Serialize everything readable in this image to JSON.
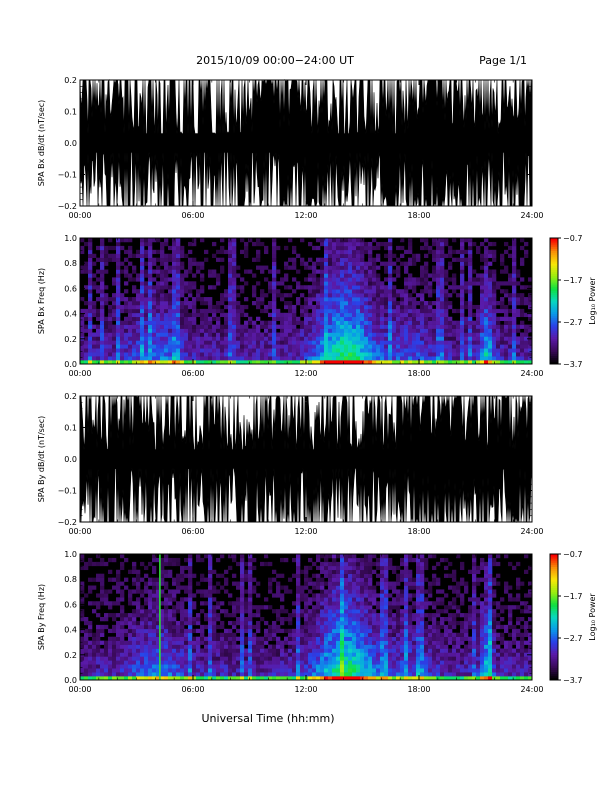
{
  "header": {
    "date_range": "2015/10/09  00:00−24:00 UT",
    "page": "Page 1/1"
  },
  "x_axis": {
    "title": "Universal Time (hh:mm)",
    "tick_labels": [
      "00:00",
      "06:00",
      "12:00",
      "18:00",
      "24:00"
    ]
  },
  "colors": {
    "waveform": "#000000",
    "spectrogram_background": "#000000",
    "colormap": [
      "#000000",
      "#3a0a5a",
      "#5a1aa8",
      "#2a40e8",
      "#0a9ae8",
      "#08d8c0",
      "#10e040",
      "#9aee10",
      "#f8e808",
      "#f89008",
      "#f80000"
    ]
  },
  "chart_data": [
    {
      "type": "line",
      "ylabel": "SPA Bx dB/dt (nT/sec)",
      "ylim": [
        -0.2,
        0.2
      ],
      "y_tick_labels": [
        "0.2",
        "0.1",
        "0.0",
        "−0.1",
        "−0.2"
      ],
      "x_range_hours": [
        0,
        24
      ],
      "note_values": "dense black waveform saturating the ±0.2 range"
    },
    {
      "type": "heatmap",
      "ylabel": "SPA Bx Freq (Hz)",
      "ylim": [
        0.0,
        1.0
      ],
      "y_tick_labels": [
        "1.0",
        "0.8",
        "0.6",
        "0.4",
        "0.2",
        "0.0"
      ],
      "x_range_hours": [
        0,
        24
      ],
      "colorbar": {
        "label": "Log₁₀ Power",
        "range": [
          -3.7,
          -0.7
        ],
        "tick_labels": [
          "−0.7",
          "−1.7",
          "−2.7",
          "−3.7"
        ]
      }
    },
    {
      "type": "line",
      "ylabel": "SPA By dB/dt (nT/sec)",
      "ylim": [
        -0.2,
        0.2
      ],
      "y_tick_labels": [
        "0.2",
        "0.1",
        "0.0",
        "−0.1",
        "−0.2"
      ],
      "x_range_hours": [
        0,
        24
      ]
    },
    {
      "type": "heatmap",
      "ylabel": "SPA By Freq (Hz)",
      "ylim": [
        0.0,
        1.0
      ],
      "y_tick_labels": [
        "1.0",
        "0.8",
        "0.6",
        "0.4",
        "0.2",
        "0.0"
      ],
      "x_range_hours": [
        0,
        24
      ],
      "colorbar": {
        "label": "Log₁₀ Power",
        "range": [
          -3.7,
          -0.7
        ],
        "tick_labels": [
          "−0.7",
          "−1.7",
          "−2.7",
          "−3.7"
        ]
      }
    }
  ]
}
